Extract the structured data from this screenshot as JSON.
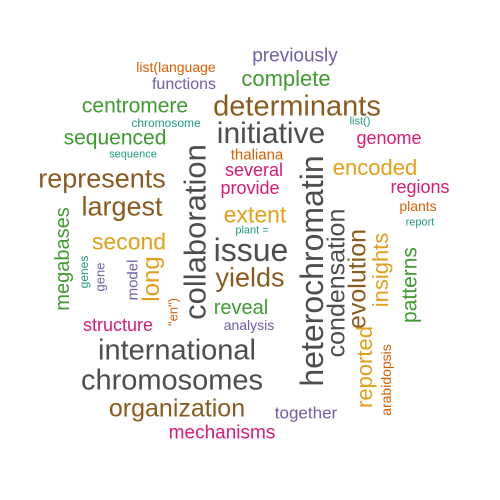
{
  "colors": {
    "background": "#ffffff",
    "gray": "#4d4d4d",
    "brown": "#8a5a1e",
    "green": "#3f9a2f",
    "orange": "#e39e1a",
    "magenta": "#d81b74",
    "purple": "#6c5fa8",
    "teal": "#1f9a82",
    "red_orange": "#d95f02"
  },
  "words": [
    {
      "text": "previously",
      "color": "purple"
    },
    {
      "text": "list(language",
      "color": "red_orange"
    },
    {
      "text": "complete",
      "color": "green"
    },
    {
      "text": "functions",
      "color": "purple"
    },
    {
      "text": "centromere",
      "color": "green"
    },
    {
      "text": "determinants",
      "color": "brown"
    },
    {
      "text": "chromosome",
      "color": "teal"
    },
    {
      "text": "list()",
      "color": "teal"
    },
    {
      "text": "initiative",
      "color": "gray"
    },
    {
      "text": "genome",
      "color": "magenta"
    },
    {
      "text": "sequenced",
      "color": "green"
    },
    {
      "text": "sequence",
      "color": "teal"
    },
    {
      "text": "thaliana",
      "color": "red_orange"
    },
    {
      "text": "encoded",
      "color": "orange"
    },
    {
      "text": "represents",
      "color": "brown"
    },
    {
      "text": "several",
      "color": "magenta"
    },
    {
      "text": "provide",
      "color": "magenta"
    },
    {
      "text": "regions",
      "color": "magenta"
    },
    {
      "text": "largest",
      "color": "brown"
    },
    {
      "text": "plants",
      "color": "red_orange"
    },
    {
      "text": "extent",
      "color": "orange"
    },
    {
      "text": "report",
      "color": "teal"
    },
    {
      "text": "plant =",
      "color": "teal"
    },
    {
      "text": "second",
      "color": "orange"
    },
    {
      "text": "issue",
      "color": "gray"
    },
    {
      "text": "yields",
      "color": "brown"
    },
    {
      "text": "reveal",
      "color": "green"
    },
    {
      "text": "structure",
      "color": "magenta"
    },
    {
      "text": "analysis",
      "color": "purple"
    },
    {
      "text": "international",
      "color": "gray"
    },
    {
      "text": "chromosomes",
      "color": "gray"
    },
    {
      "text": "organization",
      "color": "brown"
    },
    {
      "text": "together",
      "color": "purple"
    },
    {
      "text": "mechanisms",
      "color": "magenta"
    },
    {
      "text": "megabases",
      "color": "green"
    },
    {
      "text": "genes",
      "color": "teal"
    },
    {
      "text": "gene",
      "color": "purple"
    },
    {
      "text": "model",
      "color": "purple"
    },
    {
      "text": "long",
      "color": "orange"
    },
    {
      "text": "\"en\")",
      "color": "red_orange"
    },
    {
      "text": "collaboration",
      "color": "gray"
    },
    {
      "text": "heterochromatin",
      "color": "gray"
    },
    {
      "text": "condensation",
      "color": "gray"
    },
    {
      "text": "evolution",
      "color": "brown"
    },
    {
      "text": "reported",
      "color": "orange"
    },
    {
      "text": "insights",
      "color": "orange"
    },
    {
      "text": "arabidopsis",
      "color": "red_orange"
    },
    {
      "text": "patterns",
      "color": "green"
    }
  ]
}
